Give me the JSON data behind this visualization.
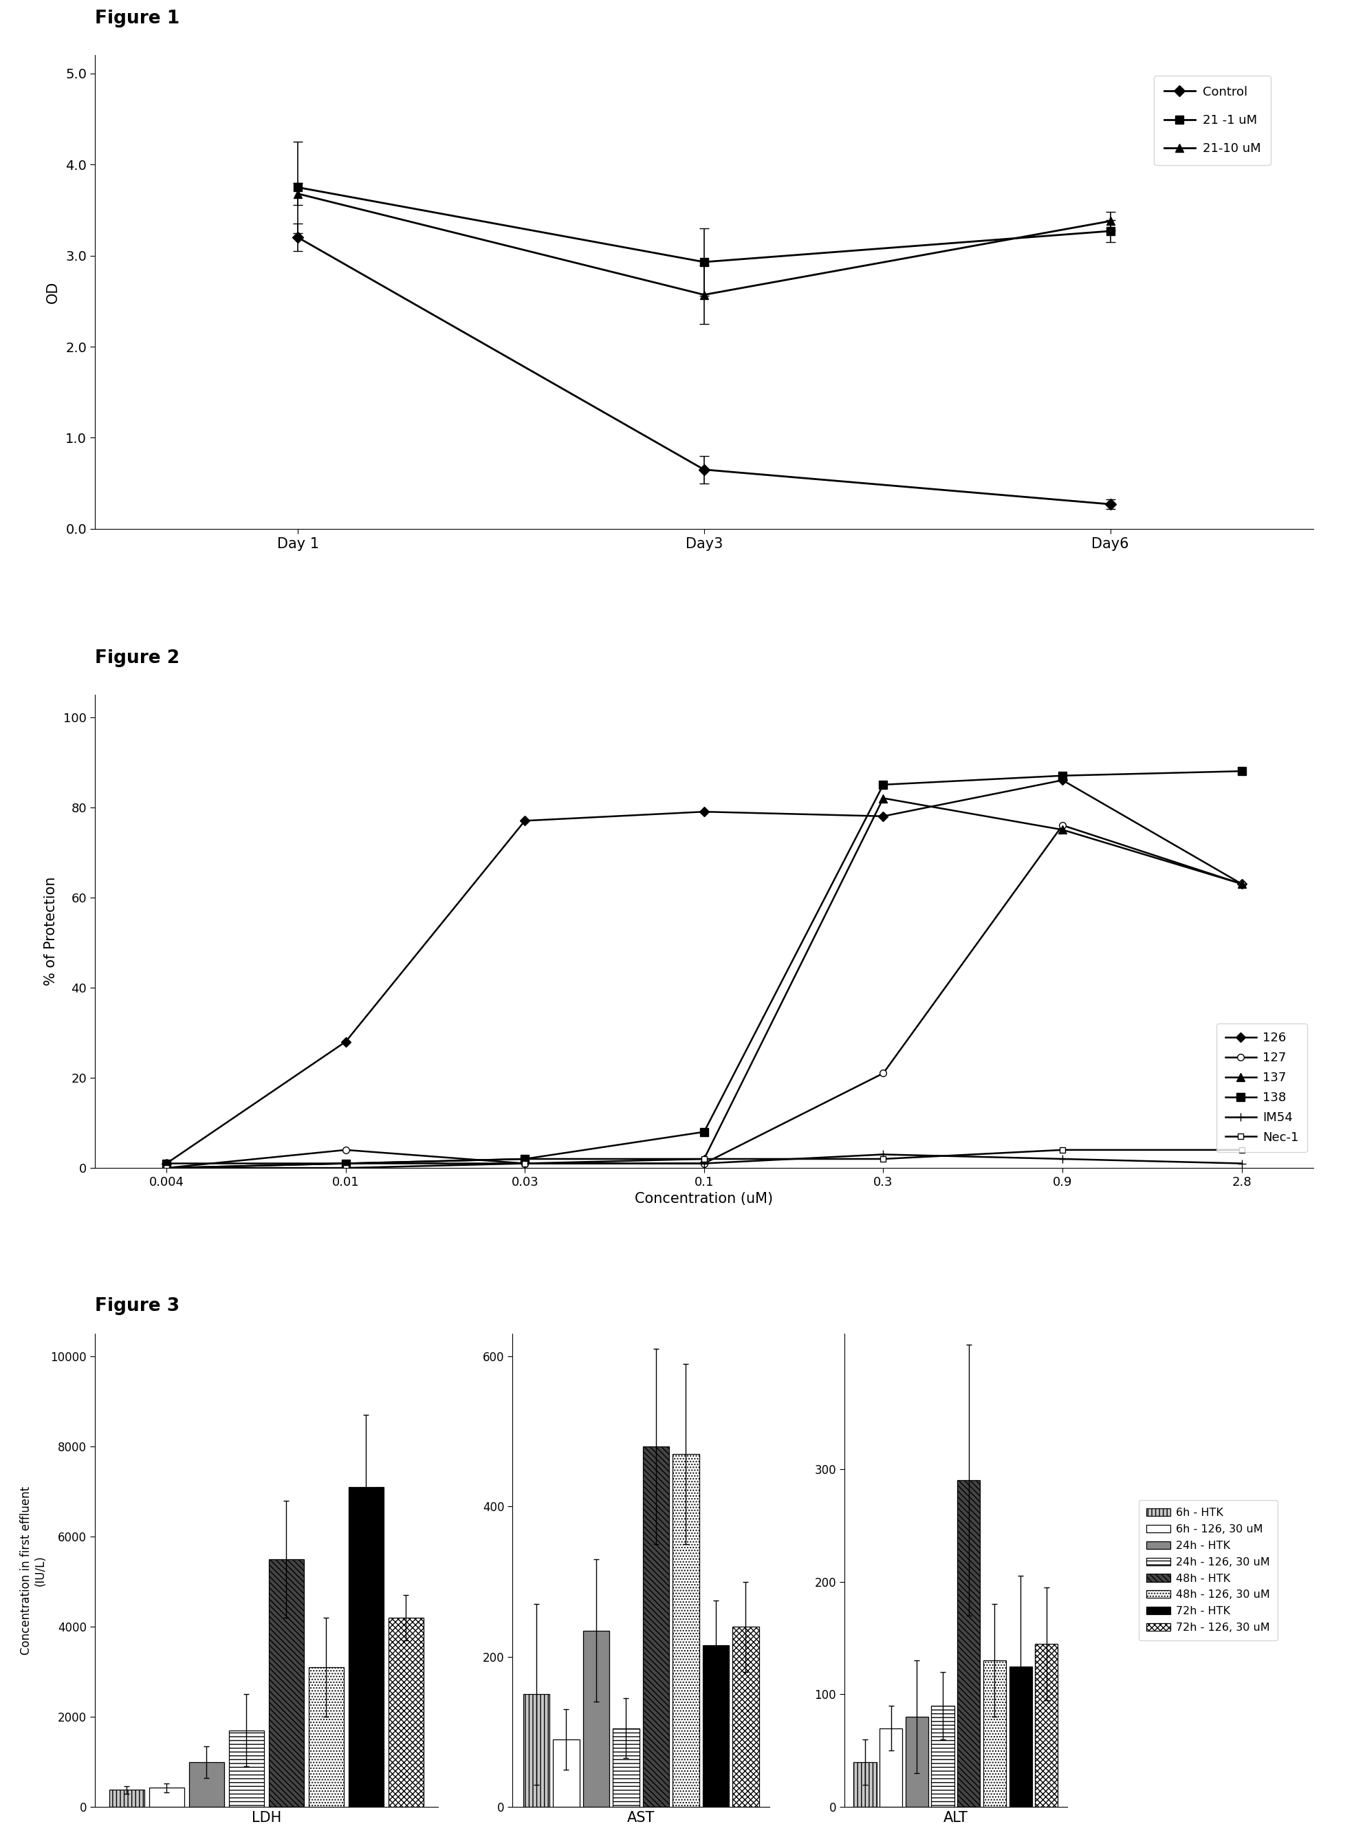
{
  "fig1": {
    "title": "Figure 1",
    "xlabel": "",
    "ylabel": "OD",
    "xticklabels": [
      "Day 1",
      "Day3",
      "Day6"
    ],
    "x": [
      0,
      1,
      2
    ],
    "series": [
      {
        "label": "Control",
        "y": [
          3.2,
          0.65,
          0.27
        ],
        "yerr": [
          0.15,
          0.15,
          0.05
        ],
        "marker": "D",
        "markersize": 8,
        "color": "#000000",
        "linestyle": "-"
      },
      {
        "label": "21 -1 uM",
        "y": [
          3.75,
          2.93,
          3.27
        ],
        "yerr": [
          0.5,
          0.37,
          0.12
        ],
        "marker": "s",
        "markersize": 8,
        "color": "#000000",
        "linestyle": "-"
      },
      {
        "label": "21-10 uM",
        "y": [
          3.68,
          2.57,
          3.38
        ],
        "yerr": [
          0.12,
          0.32,
          0.1
        ],
        "marker": "^",
        "markersize": 8,
        "color": "#000000",
        "linestyle": "-"
      }
    ],
    "ylim": [
      0,
      5.2
    ],
    "yticks": [
      0.0,
      1.0,
      2.0,
      3.0,
      4.0,
      5.0
    ]
  },
  "fig2": {
    "title": "Figure 2",
    "xlabel": "Concentration (uM)",
    "ylabel": "% of Protection",
    "xticklabels": [
      "0.004",
      "0.01",
      "0.03",
      "0.1",
      "0.3",
      "0.9",
      "2.8"
    ],
    "series": [
      {
        "label": "126",
        "y": [
          1,
          28,
          77,
          79,
          78,
          86,
          63
        ],
        "marker": "D",
        "markersize": 7,
        "fillstyle": "full"
      },
      {
        "label": "127",
        "y": [
          0,
          4,
          1,
          1,
          21,
          76,
          63
        ],
        "marker": "o",
        "markersize": 7,
        "fillstyle": "none"
      },
      {
        "label": "137",
        "y": [
          0,
          1,
          2,
          2,
          82,
          75,
          63
        ],
        "marker": "^",
        "markersize": 8,
        "fillstyle": "full"
      },
      {
        "label": "138",
        "y": [
          1,
          1,
          2,
          8,
          85,
          87,
          88
        ],
        "marker": "s",
        "markersize": 8,
        "fillstyle": "full"
      },
      {
        "label": "IM54",
        "y": [
          0,
          1,
          1,
          1,
          3,
          2,
          1
        ],
        "marker": "+",
        "markersize": 9,
        "fillstyle": "full"
      },
      {
        "label": "Nec-1",
        "y": [
          0,
          0,
          1,
          2,
          2,
          4,
          4
        ],
        "marker": "s",
        "markersize": 6,
        "fillstyle": "none"
      }
    ],
    "ylim": [
      0,
      105
    ],
    "yticks": [
      0,
      20,
      40,
      60,
      80,
      100
    ]
  },
  "fig3": {
    "title": "Figure 3",
    "ylabel": "Concentration in first effluent\n(IU/L)",
    "groups": [
      "LDH",
      "AST",
      "ALT"
    ],
    "bar_labels": [
      "6h - HTK",
      "6h - 126, 30 uM",
      "24h - HTK",
      "24h - 126, 30 uM",
      "48h - HTK",
      "48h - 126, 30 uM",
      "72h - HTK",
      "72h - 126, 30 uM"
    ],
    "LDH": {
      "values": [
        380,
        430,
        1000,
        1700,
        5500,
        3100,
        7100,
        4200
      ],
      "errors": [
        80,
        100,
        350,
        800,
        1300,
        1100,
        1600,
        500
      ],
      "ylim": [
        0,
        10500
      ],
      "yticks": [
        0,
        2000,
        4000,
        6000,
        8000,
        10000
      ]
    },
    "AST": {
      "values": [
        150,
        90,
        235,
        105,
        480,
        470,
        215,
        240
      ],
      "errors": [
        120,
        40,
        95,
        40,
        130,
        120,
        60,
        60
      ],
      "ylim": [
        0,
        630
      ],
      "yticks": [
        0,
        200,
        400,
        600
      ]
    },
    "ALT": {
      "values": [
        40,
        70,
        80,
        90,
        290,
        130,
        125,
        145
      ],
      "errors": [
        20,
        20,
        50,
        30,
        120,
        50,
        80,
        50
      ],
      "ylim": [
        0,
        420
      ],
      "yticks": [
        0,
        100,
        200,
        300
      ]
    }
  },
  "background_color": "#ffffff",
  "text_color": "#000000"
}
